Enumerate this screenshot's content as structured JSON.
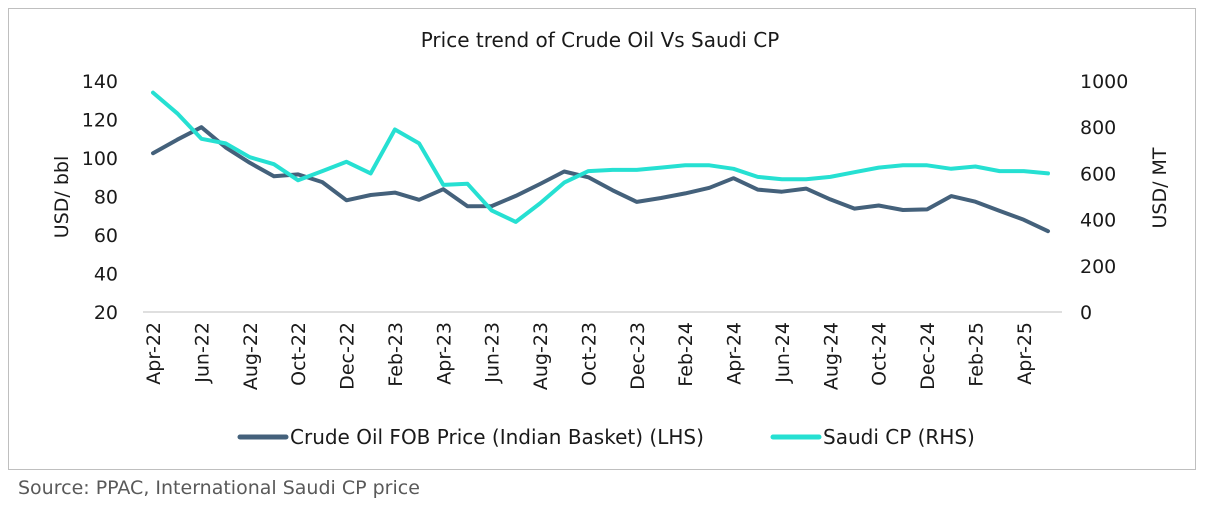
{
  "source_note": "Source: PPAC, International Saudi CP price",
  "chart_data": {
    "type": "line",
    "title": "Price trend of Crude Oil Vs Saudi CP",
    "ylabel": "USD/ bbl",
    "y2label": "USD/ MT",
    "ylim": [
      20,
      140
    ],
    "y_ticks": [
      20,
      40,
      60,
      80,
      100,
      120,
      140
    ],
    "y2lim": [
      0,
      1000
    ],
    "y2_ticks": [
      0,
      200,
      400,
      600,
      800,
      1000
    ],
    "grid": false,
    "legend_position": "bottom",
    "x": [
      "Apr-22",
      "May-22",
      "Jun-22",
      "Jul-22",
      "Aug-22",
      "Sep-22",
      "Oct-22",
      "Nov-22",
      "Dec-22",
      "Jan-23",
      "Feb-23",
      "Mar-23",
      "Apr-23",
      "May-23",
      "Jun-23",
      "Jul-23",
      "Aug-23",
      "Sep-23",
      "Oct-23",
      "Nov-23",
      "Dec-23",
      "Jan-24",
      "Feb-24",
      "Mar-24",
      "Apr-24",
      "May-24",
      "Jun-24",
      "Jul-24",
      "Aug-24",
      "Sep-24",
      "Oct-24",
      "Nov-24",
      "Dec-24",
      "Jan-25",
      "Feb-25",
      "Mar-25",
      "Apr-25",
      "May-25"
    ],
    "x_tick_labels": [
      "Apr-22",
      "Jun-22",
      "Aug-22",
      "Oct-22",
      "Dec-22",
      "Feb-23",
      "Apr-23",
      "Jun-23",
      "Aug-23",
      "Oct-23",
      "Dec-23",
      "Feb-24",
      "Apr-24",
      "Jun-24",
      "Aug-24",
      "Oct-24",
      "Dec-24",
      "Feb-25",
      "Apr-25"
    ],
    "series": [
      {
        "name": "Crude Oil FOB Price (Indian Basket) (LHS)",
        "axis": "left",
        "color": "#44617b",
        "values": [
          102.5,
          109.5,
          116.0,
          105.5,
          97.5,
          90.5,
          91.5,
          87.5,
          78.0,
          80.8,
          82.0,
          78.3,
          83.8,
          74.9,
          75.0,
          80.3,
          86.5,
          93.0,
          90.0,
          83.2,
          77.2,
          79.2,
          81.6,
          84.5,
          89.5,
          83.6,
          82.5,
          84.1,
          78.5,
          73.7,
          75.3,
          73.0,
          73.3,
          80.2,
          77.3,
          72.5,
          67.9,
          62.0
        ]
      },
      {
        "name": "Saudi CP (RHS)",
        "axis": "right",
        "color": "#26e0d2",
        "values": [
          950,
          860,
          750,
          730,
          670,
          640,
          570,
          610,
          650,
          600,
          790,
          730,
          550,
          555,
          440,
          390,
          470,
          560,
          610,
          615,
          615,
          625,
          635,
          635,
          620,
          585,
          575,
          575,
          585,
          605,
          625,
          635,
          635,
          620,
          630,
          610,
          610,
          600
        ]
      }
    ]
  }
}
